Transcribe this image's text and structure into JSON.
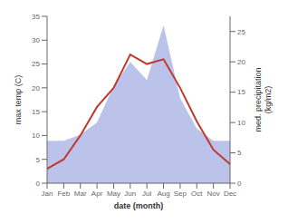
{
  "chart_data": {
    "type": "line",
    "categories": [
      "Jan",
      "Feb",
      "Mar",
      "Apr",
      "May",
      "Jun",
      "Jul",
      "Aug",
      "Sep",
      "Oct",
      "Nov",
      "Dec"
    ],
    "series": [
      {
        "type": "line",
        "color": "#c0392b",
        "values": [
          3,
          5,
          10,
          16,
          20,
          27,
          25,
          26,
          20,
          13,
          7,
          4
        ]
      },
      {
        "type": "area",
        "color": "#b0b8e8",
        "axis": "y2",
        "values": [
          7,
          7,
          8,
          10,
          16,
          20,
          17,
          26,
          14,
          9,
          7,
          7
        ]
      }
    ],
    "xlabel": "date (month)",
    "ylabel": "max temp (C)",
    "y2label": "med. precipitation\n(kg/m2)",
    "ylim": [
      0,
      35
    ],
    "yticks": [
      0,
      5,
      10,
      15,
      20,
      25,
      30,
      35
    ],
    "y2lim": [
      0,
      27.5
    ],
    "y2ticks": [
      0,
      5,
      10,
      15,
      20,
      25
    ],
    "grid": false
  }
}
